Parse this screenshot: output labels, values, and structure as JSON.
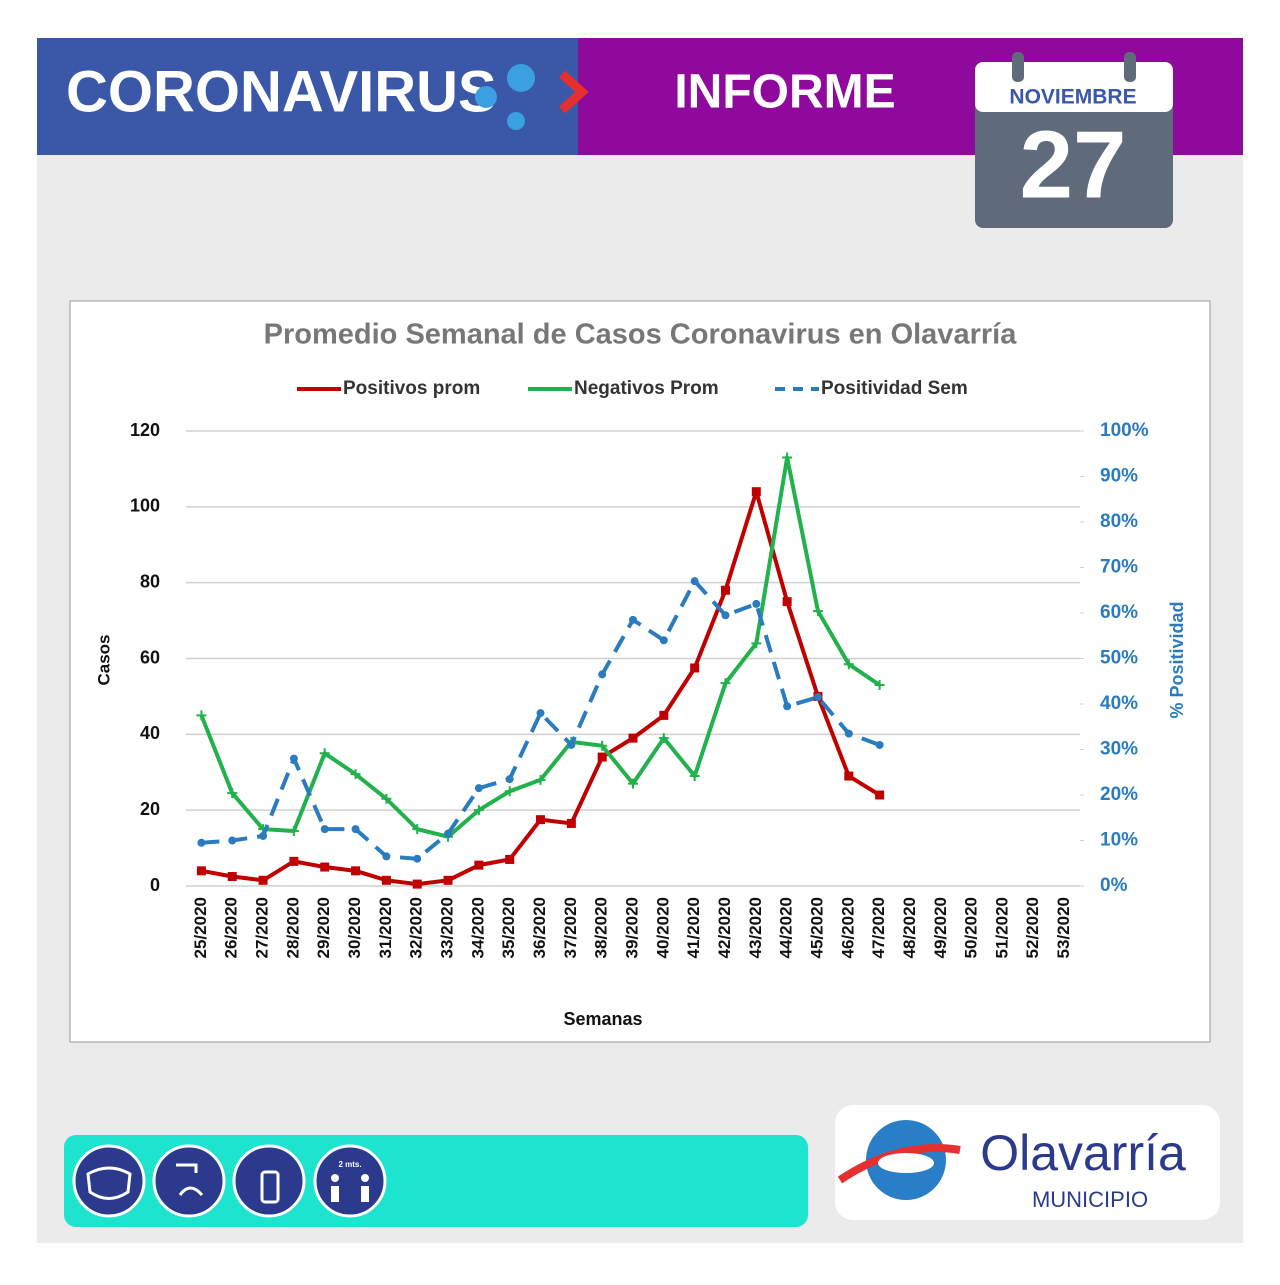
{
  "header": {
    "left": "CORONAVIRUS",
    "right": "INFORME",
    "month": "NOVIEMBRE",
    "day": "27"
  },
  "footer": {
    "icon_label": "2 mts.",
    "brand": "Olavarría",
    "sub": "MUNICIPIO"
  },
  "chart_data": {
    "type": "line",
    "title": "Promedio Semanal de Casos Coronavirus en Olavarría",
    "x_label": "Semanas",
    "y_label": "Casos",
    "y2_label": "% Positividad",
    "legend": "top",
    "grid": true,
    "categories": [
      "25/2020",
      "26/2020",
      "27/2020",
      "28/2020",
      "29/2020",
      "30/2020",
      "31/2020",
      "32/2020",
      "33/2020",
      "34/2020",
      "35/2020",
      "36/2020",
      "37/2020",
      "38/2020",
      "39/2020",
      "40/2020",
      "41/2020",
      "42/2020",
      "43/2020",
      "44/2020",
      "45/2020",
      "46/2020",
      "47/2020",
      "48/2020",
      "49/2020",
      "50/2020",
      "51/2020",
      "52/2020",
      "53/2020"
    ],
    "ylim": [
      0,
      120
    ],
    "yticks": [
      0,
      20,
      40,
      60,
      80,
      100,
      120
    ],
    "y2lim": [
      0,
      100
    ],
    "y2ticks": [
      {
        "value": 0,
        "label": "0%"
      },
      {
        "value": 10,
        "label": "10%"
      },
      {
        "value": 20,
        "label": "20%"
      },
      {
        "value": 30,
        "label": "30%"
      },
      {
        "value": 40,
        "label": "40%"
      },
      {
        "value": 50,
        "label": "50%"
      },
      {
        "value": 60,
        "label": "60%"
      },
      {
        "value": 70,
        "label": "70%"
      },
      {
        "value": 80,
        "label": "80%"
      },
      {
        "value": 90,
        "label": "90%"
      },
      {
        "value": 100,
        "label": "100%"
      }
    ],
    "series": [
      {
        "name": "Positivos prom",
        "color": "#c00000",
        "marker": "square",
        "values": [
          4,
          2.5,
          1.5,
          6.5,
          5,
          4,
          1.5,
          0.5,
          1.5,
          5.5,
          7,
          17.5,
          16.5,
          34,
          39,
          45,
          57.5,
          78,
          104,
          75,
          50,
          29,
          24,
          null,
          null,
          null,
          null,
          null,
          null
        ]
      },
      {
        "name": "Negativos Prom",
        "color": "#22b14c",
        "marker": "plus",
        "values": [
          45,
          24.5,
          15,
          14.5,
          35,
          29.5,
          23,
          15,
          13,
          20,
          25,
          28,
          38,
          37,
          27,
          39,
          29,
          53.5,
          64,
          113,
          72.5,
          58.5,
          53,
          null,
          null,
          null,
          null,
          null,
          null
        ]
      },
      {
        "name": "Positividad Sem",
        "color": "#2a7bc0",
        "marker": "dot",
        "dashed": true,
        "axis": "y2",
        "values": [
          9.5,
          10,
          11,
          28,
          12.5,
          12.5,
          6.5,
          6,
          11.5,
          21.5,
          23.5,
          38,
          31,
          46.5,
          58.5,
          54,
          67,
          59.5,
          62,
          39.5,
          41.5,
          33.5,
          31,
          null,
          null,
          null,
          null,
          null,
          null
        ]
      }
    ]
  }
}
